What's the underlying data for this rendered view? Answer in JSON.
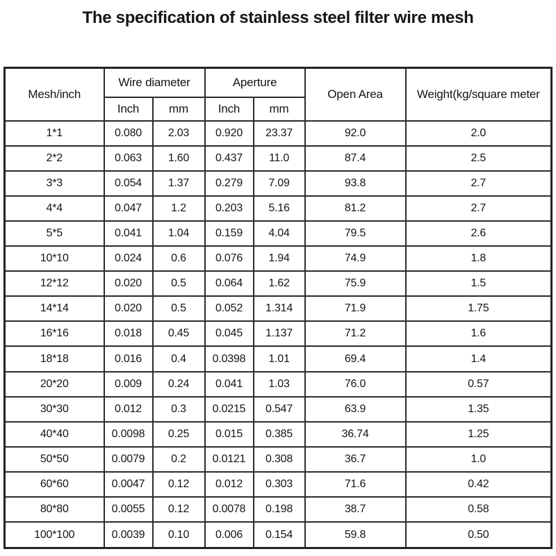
{
  "page": {
    "title": "The specification of stainless steel filter wire mesh",
    "colors": {
      "background": "#ffffff",
      "text": "#141414",
      "border": "#2b2b2b"
    }
  },
  "table": {
    "header": {
      "mesh": "Mesh/inch",
      "wire_diameter": "Wire diameter",
      "aperture": "Aperture",
      "open_area": "Open Area",
      "weight": "Weight(kg/square meter",
      "subheaders": [
        "Inch",
        "mm",
        "Inch",
        "mm"
      ]
    },
    "column_keys": [
      "mesh",
      "wire-diameter-inch",
      "wire-diameter-mm",
      "aperture-inch",
      "aperture-mm",
      "open-area",
      "weight"
    ],
    "rows": [
      [
        "1*1",
        "0.080",
        "2.03",
        "0.920",
        "23.37",
        "92.0",
        "2.0"
      ],
      [
        "2*2",
        "0.063",
        "1.60",
        "0.437",
        "11.0",
        "87.4",
        "2.5"
      ],
      [
        "3*3",
        "0.054",
        "1.37",
        "0.279",
        "7.09",
        "93.8",
        "2.7"
      ],
      [
        "4*4",
        "0.047",
        "1.2",
        "0.203",
        "5.16",
        "81.2",
        "2.7"
      ],
      [
        "5*5",
        "0.041",
        "1.04",
        "0.159",
        "4.04",
        "79.5",
        "2.6"
      ],
      [
        "10*10",
        "0.024",
        "0.6",
        "0.076",
        "1.94",
        "74.9",
        "1.8"
      ],
      [
        "12*12",
        "0.020",
        "0.5",
        "0.064",
        "1.62",
        "75.9",
        "1.5"
      ],
      [
        "14*14",
        "0.020",
        "0.5",
        "0.052",
        "1.314",
        "71.9",
        "1.75"
      ],
      [
        "16*16",
        "0.018",
        "0.45",
        "0.045",
        "1.137",
        "71.2",
        "1.6"
      ],
      [
        "18*18",
        "0.016",
        "0.4",
        "0.0398",
        "1.01",
        "69.4",
        "1.4"
      ],
      [
        "20*20",
        "0.009",
        "0.24",
        "0.041",
        "1.03",
        "76.0",
        "0.57"
      ],
      [
        "30*30",
        "0.012",
        "0.3",
        "0.0215",
        "0.547",
        "63.9",
        "1.35"
      ],
      [
        "40*40",
        "0.0098",
        "0.25",
        "0.015",
        "0.385",
        "36.74",
        "1.25"
      ],
      [
        "50*50",
        "0.0079",
        "0.2",
        "0.0121",
        "0.308",
        "36.7",
        "1.0"
      ],
      [
        "60*60",
        "0.0047",
        "0.12",
        "0.012",
        "0.303",
        "71.6",
        "0.42"
      ],
      [
        "80*80",
        "0.0055",
        "0.12",
        "0.0078",
        "0.198",
        "38.7",
        "0.58"
      ],
      [
        "100*100",
        "0.0039",
        "0.10",
        "0.006",
        "0.154",
        "59.8",
        "0.50"
      ]
    ]
  }
}
